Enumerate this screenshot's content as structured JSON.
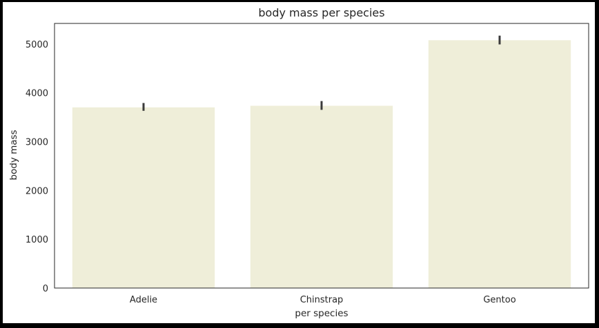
{
  "chart_data": {
    "type": "bar",
    "title": "body mass per species",
    "xlabel": "per species",
    "ylabel": "body mass",
    "categories": [
      "Adelie",
      "Chinstrap",
      "Gentoo"
    ],
    "values": [
      3701,
      3733,
      5076
    ],
    "error_low": [
      3630,
      3650,
      4990
    ],
    "error_high": [
      3790,
      3830,
      5170
    ],
    "yticks": [
      0,
      1000,
      2000,
      3000,
      4000,
      5000
    ],
    "ylim": [
      0,
      5420
    ],
    "grid": false,
    "bar_color": "#efeed9",
    "error_color": "#3b3b3b"
  }
}
